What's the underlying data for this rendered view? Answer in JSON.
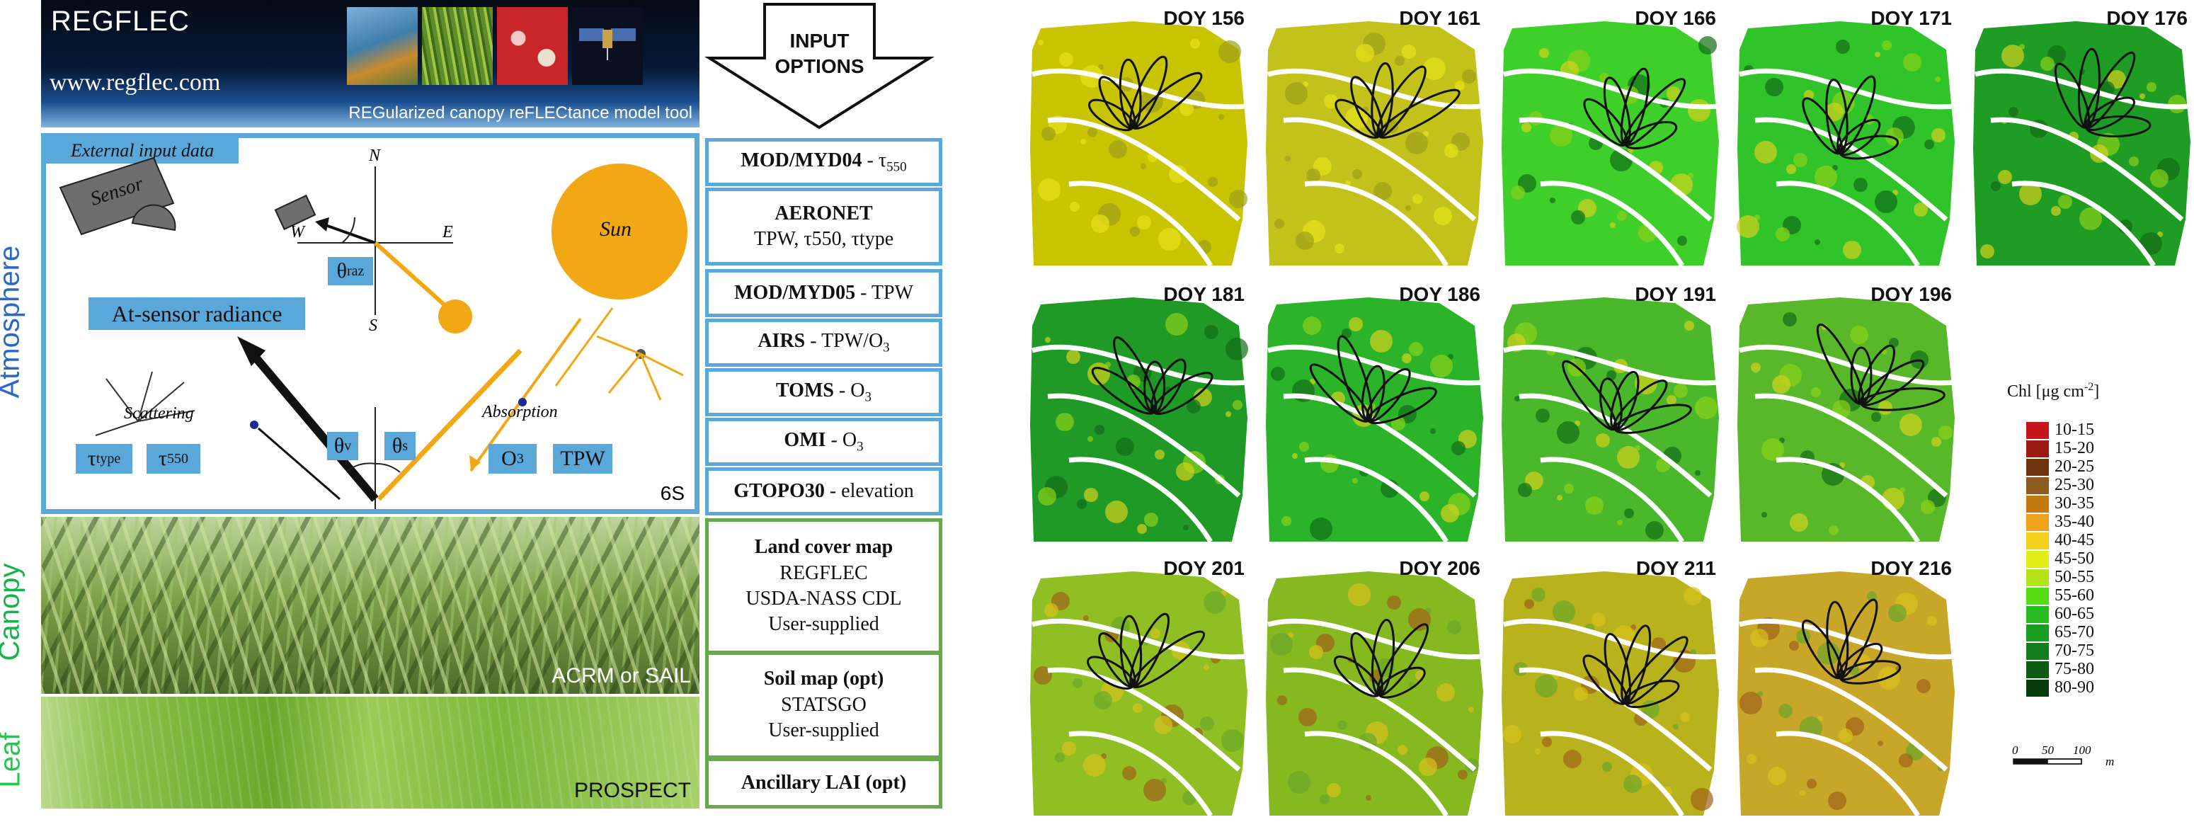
{
  "header": {
    "title": "REGFLEC",
    "url": "www.regflec.com",
    "subtitle": "REGularized canopy reFLECtance model tool"
  },
  "arrow_label": {
    "line1": "INPUT",
    "line2": "OPTIONS"
  },
  "layers": {
    "atmosphere": "Atmosphere",
    "canopy": "Canopy",
    "leaf": "Leaf"
  },
  "atmosphere_panel": {
    "tab": "External input data",
    "sensor": "Sensor",
    "sun": "Sun",
    "compass": {
      "n": "N",
      "s": "S",
      "e": "E",
      "w": "W"
    },
    "theta_raz": "θ",
    "theta_raz_sub": "raz",
    "at_sensor": "At-sensor radiance",
    "scattering": "Scattering",
    "absorption": "Absorption",
    "theta_v": "θ",
    "theta_v_sub": "v",
    "theta_s": "θ",
    "theta_s_sub": "s",
    "tau_type": "τ",
    "tau_type_sub": "type",
    "tau550": "τ",
    "tau550_sub": "550",
    "o3": "O",
    "o3_sub": "3",
    "tpw": "TPW",
    "model": "6S"
  },
  "canopy_panel": {
    "model": "ACRM or SAIL"
  },
  "leaf_panel": {
    "model": "PROSPECT"
  },
  "inputs": [
    {
      "bold": "MOD/MYD04",
      "rest": " -  τ",
      "sub": "550"
    },
    {
      "bold": "AERONET",
      "line2": "TPW, τ550, τtype"
    },
    {
      "bold": "MOD/MYD05",
      "rest": " -  TPW"
    },
    {
      "bold": "AIRS",
      "rest": " - TPW/O",
      "sub": "3"
    },
    {
      "bold": "TOMS",
      "rest": " - O",
      "sub": "3"
    },
    {
      "bold": "OMI",
      "rest": " - O",
      "sub": "3"
    },
    {
      "bold": "GTOPO30",
      "rest": " - elevation"
    }
  ],
  "inputs_green": [
    {
      "bold": "Land cover map",
      "lines": [
        "REGFLEC",
        "USDA-NASS CDL",
        "User-supplied"
      ]
    },
    {
      "bold": "Soil map (opt)",
      "lines": [
        "STATSGO",
        "User-supplied"
      ]
    },
    {
      "bold": "Ancillary LAI (opt)",
      "lines": []
    }
  ],
  "maps": [
    {
      "label": "DOY 156",
      "tone": "#c9c400"
    },
    {
      "label": "DOY 161",
      "tone": "#c2c21a"
    },
    {
      "label": "DOY 166",
      "tone": "#3fcf2a"
    },
    {
      "label": "DOY 171",
      "tone": "#31c42a"
    },
    {
      "label": "DOY 176",
      "tone": "#1f9c24"
    },
    {
      "label": "DOY 181",
      "tone": "#1f9a26"
    },
    {
      "label": "DOY 186",
      "tone": "#2bb42a"
    },
    {
      "label": "DOY 191",
      "tone": "#4ab82a"
    },
    {
      "label": "DOY 196",
      "tone": "#58b82a"
    },
    {
      "label": "DOY 201",
      "tone": "#8fbf22"
    },
    {
      "label": "DOY 206",
      "tone": "#86b81f"
    },
    {
      "label": "DOY 211",
      "tone": "#b8b21c"
    },
    {
      "label": "DOY 216",
      "tone": "#c8a628"
    }
  ],
  "legend": {
    "title": "Chl [μg cm",
    "title_sup": "-2",
    "title_end": "]",
    "classes": [
      {
        "label": "10-15",
        "color": "#c4161c"
      },
      {
        "label": "15-20",
        "color": "#9c1b12"
      },
      {
        "label": "20-25",
        "color": "#6e3610"
      },
      {
        "label": "25-30",
        "color": "#8a5a1e"
      },
      {
        "label": "30-35",
        "color": "#c27a10"
      },
      {
        "label": "35-40",
        "color": "#eda31a"
      },
      {
        "label": "40-45",
        "color": "#f2d11c"
      },
      {
        "label": "45-50",
        "color": "#e3ee18"
      },
      {
        "label": "50-55",
        "color": "#b4e418"
      },
      {
        "label": "55-60",
        "color": "#55dc12"
      },
      {
        "label": "60-65",
        "color": "#27bc1f"
      },
      {
        "label": "65-70",
        "color": "#1a9c22"
      },
      {
        "label": "70-75",
        "color": "#137c1c"
      },
      {
        "label": "75-80",
        "color": "#0c5c14"
      },
      {
        "label": "80-90",
        "color": "#063c0c"
      }
    ],
    "scale_labels": [
      "0",
      "50",
      "100"
    ],
    "scale_unit": "m"
  }
}
